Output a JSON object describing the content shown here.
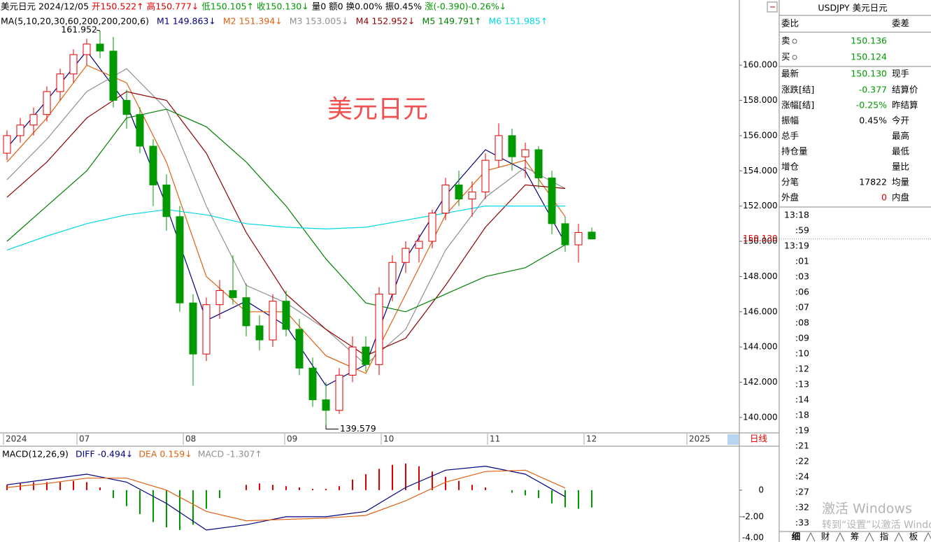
{
  "header": {
    "segments": [
      {
        "text": "美元日元 2024/12/05",
        "color": "#000000"
      },
      {
        "text": "开150.522↑",
        "color": "#e00000"
      },
      {
        "text": "高150.777↓",
        "color": "#e00000"
      },
      {
        "text": "低150.105↑",
        "color": "#009900"
      },
      {
        "text": "收150.130↓",
        "color": "#009900"
      },
      {
        "text": "量0 额0 换0.00% 振0.45%",
        "color": "#000000"
      },
      {
        "text": "涨(-0.390)-0.26%↓",
        "color": "#009900"
      }
    ]
  },
  "ma_legend": {
    "title": "MA(5,10,20,30,60,200,200,200,6)"
  },
  "chart_data": [
    {
      "type": "candlestick",
      "open": [
        155.0,
        156.0,
        156.6,
        157.2,
        158.5,
        159.5,
        160.6,
        161.2,
        160.8,
        158.0,
        157.2,
        155.4,
        153.2,
        151.4,
        146.5,
        143.6,
        146.4,
        147.2,
        146.8,
        145.2,
        144.4,
        146.6,
        145.0,
        142.8,
        141.0,
        140.4,
        142.4,
        144.0,
        143.0,
        147.0,
        148.8,
        149.6,
        150.0,
        151.6,
        153.2,
        152.4,
        152.8,
        154.6,
        156.0,
        154.8,
        155.2,
        153.6,
        151.0,
        149.8,
        150.522
      ],
      "high": [
        156.3,
        157.0,
        157.6,
        158.8,
        159.8,
        160.9,
        161.5,
        161.952,
        161.6,
        158.6,
        157.6,
        155.8,
        153.8,
        152.0,
        147.0,
        146.8,
        147.8,
        149.2,
        147.6,
        145.8,
        147.0,
        147.2,
        145.6,
        143.4,
        142.0,
        142.8,
        144.6,
        144.6,
        147.4,
        149.2,
        150.0,
        150.4,
        151.8,
        153.6,
        154.0,
        153.4,
        155.0,
        156.7,
        156.4,
        155.6,
        155.4,
        154.0,
        151.4,
        151.0,
        150.777
      ],
      "low": [
        154.6,
        155.6,
        156.0,
        156.8,
        158.0,
        159.0,
        160.0,
        160.4,
        157.6,
        156.4,
        155.0,
        152.0,
        150.6,
        146.0,
        141.8,
        143.2,
        145.6,
        146.4,
        144.6,
        143.8,
        144.0,
        144.6,
        142.4,
        140.6,
        139.579,
        140.2,
        142.0,
        142.6,
        142.4,
        146.6,
        148.2,
        148.8,
        149.6,
        151.2,
        152.0,
        151.4,
        152.4,
        154.2,
        154.0,
        153.6,
        153.0,
        150.4,
        149.4,
        148.8,
        150.105
      ],
      "close": [
        156.0,
        156.6,
        157.2,
        158.5,
        159.5,
        160.6,
        161.2,
        160.8,
        158.0,
        157.2,
        155.4,
        153.2,
        151.4,
        146.5,
        143.6,
        146.4,
        147.2,
        146.8,
        145.2,
        144.4,
        146.6,
        145.0,
        142.8,
        141.0,
        140.4,
        142.4,
        144.0,
        143.0,
        147.0,
        148.8,
        149.6,
        150.0,
        151.6,
        153.2,
        152.4,
        152.8,
        154.6,
        156.0,
        154.8,
        155.2,
        153.6,
        151.0,
        149.8,
        150.5,
        150.13
      ],
      "up_color": "#e00000",
      "down_color": "#009900",
      "ylim": [
        139.2,
        163.7
      ],
      "yticks": [
        {
          "value": 140,
          "label": "140.000"
        },
        {
          "value": 142,
          "label": "142.000"
        },
        {
          "value": 144,
          "label": "144.000"
        },
        {
          "value": 146,
          "label": "146.000"
        },
        {
          "value": 148,
          "label": "148.000"
        },
        {
          "value": 150,
          "label": "150.000"
        },
        {
          "value": 152,
          "label": "152.000"
        },
        {
          "value": 154,
          "label": "154.000"
        },
        {
          "value": 156,
          "label": "156.000"
        },
        {
          "value": 158,
          "label": "158.000"
        },
        {
          "value": 160,
          "label": "160.000"
        }
      ],
      "series": [
        {
          "name": "M1 149.863↓",
          "color": "#000080",
          "values": [
            155.3,
            158.0,
            160.8,
            157.8,
            152.0,
            145.5,
            146.6,
            145.2,
            141.8,
            143.0,
            149.0,
            152.6,
            155.2,
            154.0,
            149.9
          ]
        },
        {
          "name": "M2 151.394↓",
          "color": "#e06010",
          "values": [
            154.5,
            157.0,
            160.0,
            159.0,
            154.5,
            148.0,
            146.0,
            146.0,
            143.5,
            142.5,
            147.0,
            151.5,
            154.0,
            154.6,
            151.4
          ]
        },
        {
          "name": "M3 153.005↓",
          "color": "#909090",
          "values": [
            153.5,
            155.8,
            158.5,
            159.8,
            157.5,
            152.0,
            147.5,
            146.5,
            145.0,
            143.0,
            145.0,
            149.5,
            152.5,
            154.2,
            153.0
          ]
        },
        {
          "name": "M4 152.952↓",
          "color": "#900000",
          "values": [
            152.5,
            154.5,
            157.0,
            158.5,
            158.0,
            155.0,
            150.5,
            147.0,
            145.0,
            143.5,
            144.5,
            147.5,
            150.8,
            153.2,
            153.0
          ]
        },
        {
          "name": "M5 149.791↑",
          "color": "#008000",
          "values": [
            150.0,
            152.0,
            154.0,
            157.0,
            157.5,
            156.5,
            154.5,
            152.0,
            149.0,
            146.5,
            146.0,
            147.0,
            148.0,
            148.5,
            149.8
          ]
        },
        {
          "name": "M6 151.985↑",
          "color": "#00d8e8",
          "values": [
            149.5,
            150.3,
            151.0,
            151.5,
            151.8,
            151.5,
            151.0,
            150.8,
            150.7,
            150.8,
            151.2,
            151.6,
            152.0,
            152.0,
            152.0
          ]
        }
      ],
      "high_label": "161.952",
      "low_label": "139.579",
      "watermark": "美元日元",
      "last_price_label": "150.130",
      "date_labels": [
        "2024",
        "07",
        "08",
        "09",
        "10",
        "11",
        "12",
        "2025"
      ],
      "period": "日线"
    },
    {
      "type": "macd",
      "title": "MACD(12,26,9)",
      "series": [
        {
          "name": "DIFF -0.494↓",
          "color": "#000080",
          "values": [
            0.4,
            0.8,
            1.2,
            0.6,
            -1.0,
            -3.0,
            -2.6,
            -2.0,
            -2.0,
            -1.6,
            0.2,
            1.5,
            1.8,
            1.2,
            -0.49
          ]
        },
        {
          "name": "DEA 0.159↓",
          "color": "#e06010",
          "values": [
            0.2,
            0.5,
            0.9,
            0.9,
            0.0,
            -1.6,
            -2.3,
            -2.2,
            -2.1,
            -1.9,
            -0.8,
            0.6,
            1.4,
            1.5,
            0.16
          ]
        }
      ],
      "histogram_name": "MACD -1.307↑",
      "histogram": [
        0.4,
        0.5,
        0.6,
        0.6,
        0.6,
        0.7,
        0.6,
        0.2,
        -0.6,
        -1.2,
        -1.8,
        -2.4,
        -2.8,
        -3.0,
        -2.6,
        -1.4,
        -0.6,
        0.0,
        0.4,
        0.5,
        0.4,
        0.3,
        0.2,
        0.1,
        0.1,
        0.3,
        0.8,
        1.2,
        1.6,
        1.9,
        2.0,
        1.8,
        1.4,
        1.0,
        0.7,
        0.4,
        0.2,
        0.0,
        -0.2,
        -0.4,
        -0.6,
        -1.0,
        -1.3,
        -1.4,
        -1.307
      ],
      "up_color": "#e00000",
      "down_color": "#009900",
      "ylim": [
        -3.9,
        3.2
      ],
      "yticks": [
        0,
        {
          "value": -2,
          "label": "-2.00"
        },
        {
          "value": -4,
          "label": "-4.00"
        }
      ]
    }
  ],
  "quote": {
    "title": "USDJPY 美元日元",
    "rows": [
      {
        "label": "委比",
        "right": "委差"
      },
      {
        "label": "卖",
        "value": "150.136",
        "color": "#009900"
      },
      {
        "label": "买",
        "value": "150.124",
        "color": "#009900"
      },
      {
        "label": "最新",
        "value": "150.130",
        "color": "#009900",
        "right": "现手"
      },
      {
        "label": "涨跌[结]",
        "value": "-0.377",
        "color": "#009900",
        "right": "结算价"
      },
      {
        "label": "涨幅[结]",
        "value": "-0.25%",
        "color": "#009900",
        "right": "昨结算"
      },
      {
        "label": "振幅",
        "value": "0.45%",
        "color": "#000000",
        "right": "今开"
      },
      {
        "label": "总手",
        "right": "最高"
      },
      {
        "label": "持仓量",
        "right": "最低"
      },
      {
        "label": "增仓",
        "right": "量比"
      },
      {
        "label": "分笔",
        "value": "17822",
        "color": "#000000",
        "right": "均量"
      },
      {
        "label": "外盘",
        "value": "0",
        "color": "#e00000",
        "right": "内盘"
      }
    ],
    "times": [
      "13:18",
      ":59",
      "13:19",
      ":01",
      ":03",
      ":06",
      ":07",
      ":08",
      ":09",
      ":10",
      ":12",
      ":13",
      ":14",
      ":18",
      ":19",
      ":21",
      ":22",
      ":24",
      ":27",
      ":32",
      ":33"
    ],
    "tabs": [
      "细",
      "财",
      "筹",
      "指",
      "板"
    ]
  },
  "os_watermark": {
    "line1": "激活 Windows",
    "line2": "转到“设置”以激活 Windows"
  }
}
